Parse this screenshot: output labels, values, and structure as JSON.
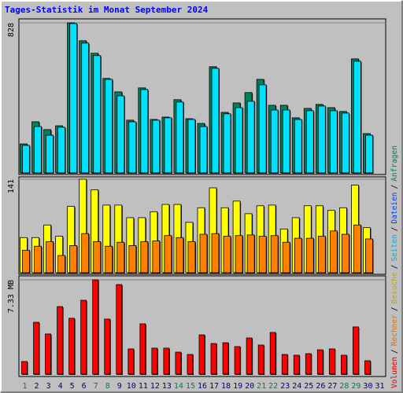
{
  "title": "Tages-Statistik im Monat September 2024",
  "legend": [
    {
      "name": "Volumen",
      "color": "#e00000"
    },
    {
      "name": "Rechner",
      "color": "#e07000"
    },
    {
      "name": "Besuche",
      "color": "#c8a000"
    },
    {
      "name": "Seiten",
      "color": "#00b0e0"
    },
    {
      "name": "Dateien",
      "color": "#0040ff"
    },
    {
      "name": "Anfragen",
      "color": "#008050"
    }
  ],
  "legend_separator": "/",
  "chart_data": [
    {
      "type": "bar",
      "ylim": [
        0,
        828
      ],
      "yticks": [
        828
      ],
      "series": [
        {
          "color": "#00805c",
          "values": [
            160,
            282,
            239,
            260,
            828,
            729,
            660,
            521,
            447,
            291,
            469,
            295,
            308,
            404,
            299,
            273,
            586,
            334,
            386,
            443,
            516,
            373,
            373,
            304,
            356,
            378,
            360,
            339,
            629,
            217,
            null
          ]
        },
        {
          "color": "#00e0ff",
          "values": [
            152,
            256,
            208,
            252,
            824,
            716,
            647,
            516,
            425,
            282,
            460,
            291,
            304,
            391,
            295,
            256,
            577,
            326,
            360,
            395,
            486,
            347,
            347,
            295,
            343,
            369,
            343,
            330,
            616,
            208,
            null
          ]
        }
      ]
    },
    {
      "type": "bar",
      "ylim": [
        0,
        141
      ],
      "yticks": [
        141
      ],
      "series": [
        {
          "color": "#ffff00",
          "values": [
            53,
            53,
            72,
            55,
            100,
            141,
            125,
            102,
            102,
            83,
            83,
            92,
            103,
            103,
            76,
            98,
            128,
            98,
            108,
            89,
            101,
            102,
            66,
            83,
            101,
            101,
            94,
            98,
            132,
            68,
            null
          ]
        },
        {
          "color": "#ff8000",
          "values": [
            34,
            40,
            47,
            26,
            41,
            59,
            47,
            40,
            46,
            41,
            47,
            48,
            56,
            53,
            47,
            58,
            59,
            55,
            56,
            57,
            55,
            56,
            46,
            52,
            52,
            55,
            63,
            58,
            72,
            51,
            null
          ]
        }
      ]
    },
    {
      "type": "bar",
      "ylim": [
        0,
        7.33
      ],
      "yticks": [
        {
          "value": 7.33,
          "label": "7.33 MB"
        }
      ],
      "series": [
        {
          "color": "#ff0000",
          "values": [
            0.98,
            4.03,
            3.12,
            5.25,
            4.34,
            5.74,
            7.33,
            4.28,
            6.96,
            1.96,
            3.91,
            2.02,
            2.02,
            1.71,
            1.53,
            3.05,
            2.38,
            2.44,
            2.14,
            2.81,
            2.26,
            3.24,
            1.53,
            1.47,
            1.59,
            1.89,
            1.96,
            1.47,
            3.67,
            1.04,
            null
          ]
        }
      ],
      "categories": [
        "1",
        "2",
        "3",
        "4",
        "5",
        "6",
        "7",
        "8",
        "9",
        "10",
        "11",
        "12",
        "13",
        "14",
        "15",
        "16",
        "17",
        "18",
        "19",
        "20",
        "21",
        "22",
        "23",
        "24",
        "25",
        "26",
        "27",
        "28",
        "29",
        "30",
        "31"
      ],
      "category_colors": [
        "#008040",
        "#000080",
        "#000080",
        "#000080",
        "#000080",
        "#000080",
        "#008040",
        "#008040",
        "#000080",
        "#000080",
        "#000080",
        "#000080",
        "#000080",
        "#008040",
        "#008040",
        "#000080",
        "#000080",
        "#000080",
        "#000080",
        "#000080",
        "#008040",
        "#008040",
        "#000080",
        "#000080",
        "#000080",
        "#000080",
        "#000080",
        "#008040",
        "#008040",
        "#000080",
        "#000080"
      ]
    }
  ]
}
